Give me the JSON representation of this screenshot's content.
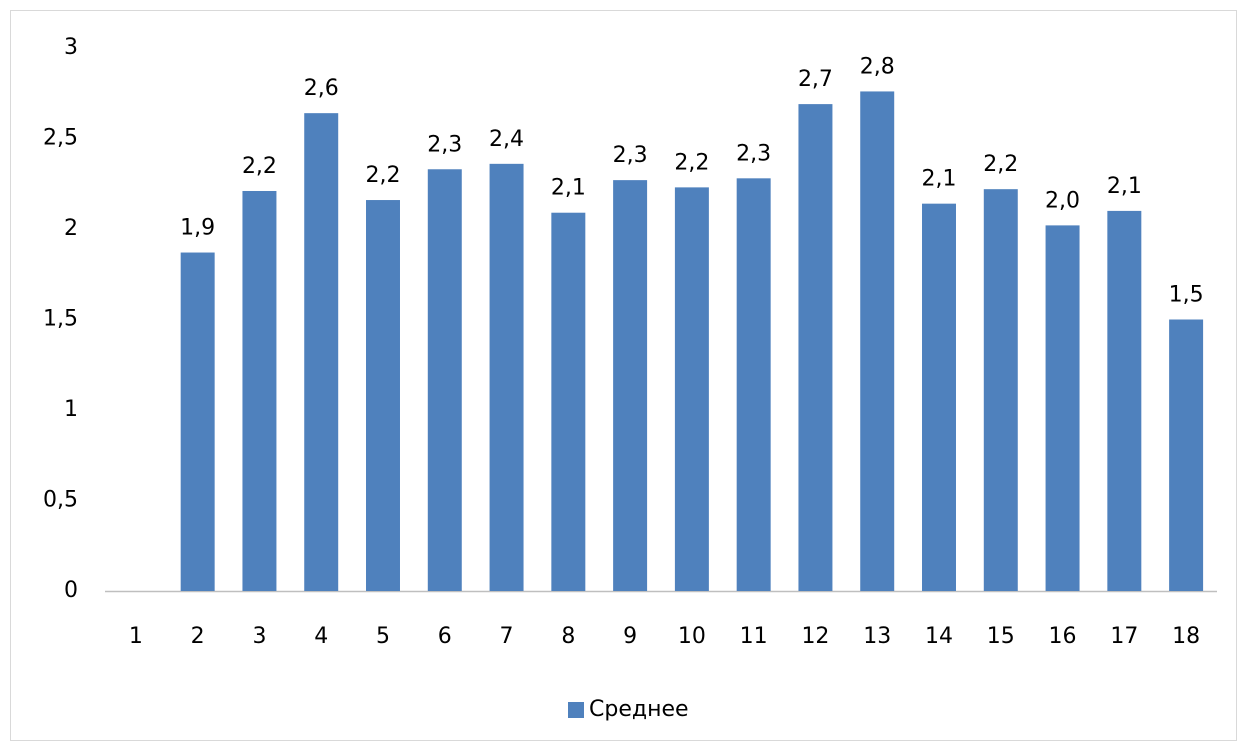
{
  "chart_data": {
    "type": "bar",
    "categories": [
      "1",
      "2",
      "3",
      "4",
      "5",
      "6",
      "7",
      "8",
      "9",
      "10",
      "11",
      "12",
      "13",
      "14",
      "15",
      "16",
      "17",
      "18"
    ],
    "series": [
      {
        "name": "Среднее",
        "color": "#4f81bd",
        "values": [
          null,
          1.87,
          2.21,
          2.64,
          2.16,
          2.33,
          2.36,
          2.09,
          2.27,
          2.23,
          2.28,
          2.69,
          2.76,
          2.14,
          2.22,
          2.02,
          2.1,
          1.5
        ],
        "value_labels": [
          null,
          "1,9",
          "2,2",
          "2,6",
          "2,2",
          "2,3",
          "2,4",
          "2,1",
          "2,3",
          "2,2",
          "2,3",
          "2,7",
          "2,8",
          "2,1",
          "2,2",
          "2,0",
          "2,1",
          "1,5"
        ]
      }
    ],
    "ylim": [
      0,
      3
    ],
    "yticks": [
      0,
      {
        "value": 0.5,
        "label": "0,5"
      },
      1,
      {
        "value": 1.5,
        "label": "1,5"
      },
      2,
      {
        "value": 2.5,
        "label": "2,5"
      },
      3
    ],
    "grid": false,
    "legend": "bottom"
  }
}
